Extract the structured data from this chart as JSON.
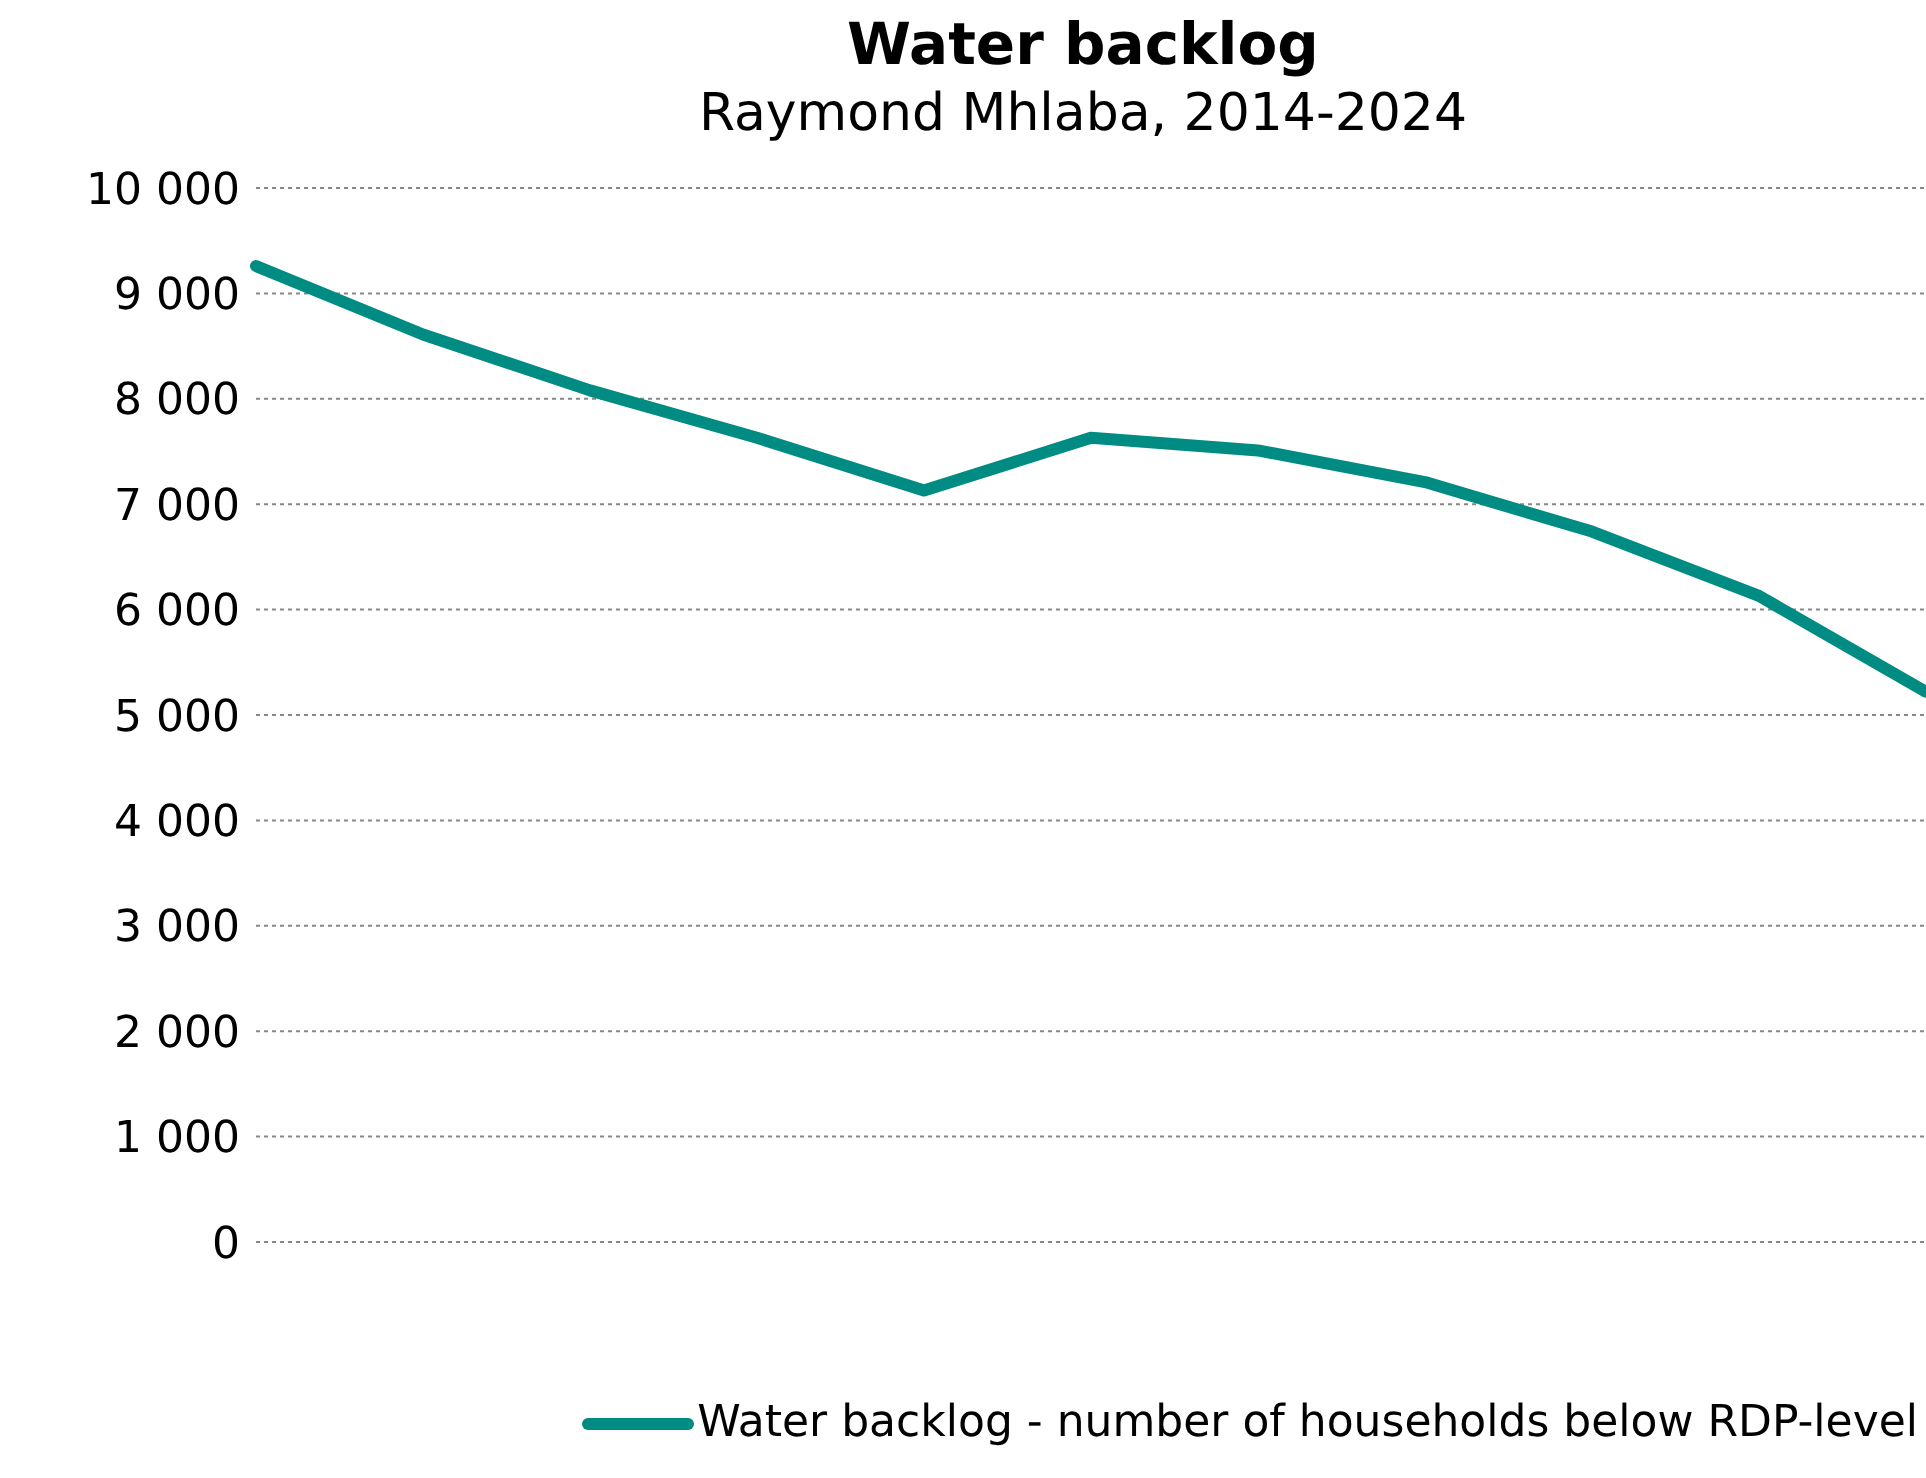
{
  "chart_data": {
    "type": "line",
    "title": "Water backlog",
    "subtitle": "Raymond Mhlaba, 2014-2024",
    "categories": [
      null,
      null,
      null,
      null,
      null,
      null,
      null,
      null,
      null,
      null,
      null
    ],
    "series": [
      {
        "name": "Water backlog - number of households below RDP-level",
        "color": "#008c82",
        "values": [
          9260,
          8610,
          8080,
          7630,
          7130,
          7630,
          7510,
          7210,
          6740,
          6130,
          5220
        ]
      }
    ],
    "ylim": [
      0,
      10000
    ],
    "yticks": [
      {
        "value": 0,
        "label": "0"
      },
      {
        "value": 1000,
        "label": "1 000"
      },
      {
        "value": 2000,
        "label": "2 000"
      },
      {
        "value": 3000,
        "label": "3 000"
      },
      {
        "value": 4000,
        "label": "4 000"
      },
      {
        "value": 5000,
        "label": "5 000"
      },
      {
        "value": 6000,
        "label": "6 000"
      },
      {
        "value": 7000,
        "label": "7 000"
      },
      {
        "value": 8000,
        "label": "8 000"
      },
      {
        "value": 9000,
        "label": "9 000"
      },
      {
        "value": 10000,
        "label": "10 000"
      }
    ],
    "grid": "y",
    "legend": "bottom right",
    "marker": "none",
    "line_style": "solid"
  }
}
